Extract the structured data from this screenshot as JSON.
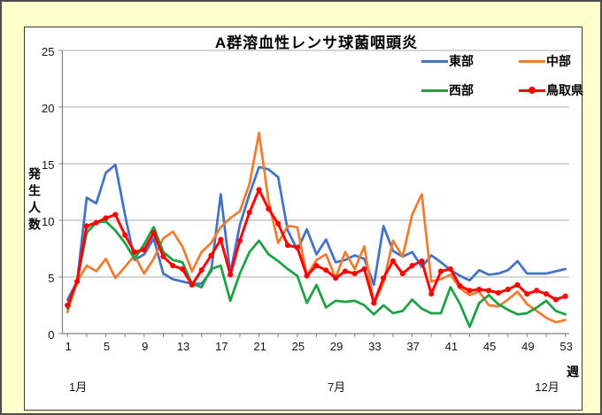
{
  "page": {
    "background": "#FFFFCC"
  },
  "chart": {
    "title": "A群溶血性レンサ球菌咽頭炎",
    "y_axis_title": "発生人数",
    "x_axis_unit": "週",
    "y_ticks": [
      0,
      5,
      10,
      15,
      20,
      25
    ],
    "x_ticks": [
      1,
      5,
      9,
      13,
      17,
      21,
      25,
      29,
      33,
      37,
      41,
      45,
      49,
      53
    ],
    "month_labels": [
      {
        "label": "1月",
        "week": 2
      },
      {
        "label": "7月",
        "week": 29
      },
      {
        "label": "12月",
        "week": 51
      }
    ],
    "grid_color": "#ADADAD",
    "axis_color": "#808080"
  },
  "chart_data": {
    "type": "line",
    "title": "A群溶血性レンサ球菌咽頭炎",
    "xlabel": "週",
    "ylabel": "発生人数",
    "x_range": [
      1,
      53
    ],
    "ylim": [
      0,
      25
    ],
    "grid": true,
    "legend_position": "top-right",
    "x": [
      1,
      2,
      3,
      4,
      5,
      6,
      7,
      8,
      9,
      10,
      11,
      12,
      13,
      14,
      15,
      16,
      17,
      18,
      19,
      20,
      21,
      22,
      23,
      24,
      25,
      26,
      27,
      28,
      29,
      30,
      31,
      32,
      33,
      34,
      35,
      36,
      37,
      38,
      39,
      40,
      41,
      42,
      43,
      44,
      45,
      46,
      47,
      48,
      49,
      50,
      51,
      52,
      53
    ],
    "series": [
      {
        "name": "東部",
        "color": "#4472C4",
        "marker": false,
        "values": [
          3.0,
          4.6,
          12.0,
          11.5,
          14.2,
          14.9,
          10.5,
          6.5,
          7.0,
          8.4,
          5.3,
          4.8,
          4.6,
          4.4,
          4.4,
          5.5,
          12.3,
          5.3,
          9.6,
          12.3,
          14.7,
          14.5,
          13.8,
          9.1,
          7.4,
          9.2,
          7.0,
          8.3,
          6.3,
          6.5,
          6.9,
          6.6,
          4.3,
          9.5,
          7.3,
          6.8,
          7.2,
          5.9,
          6.9,
          6.3,
          5.6,
          5.1,
          4.7,
          5.6,
          5.2,
          5.3,
          5.6,
          6.4,
          5.3,
          5.3,
          5.3,
          5.5,
          5.7
        ]
      },
      {
        "name": "中部",
        "color": "#ED7D31",
        "marker": false,
        "values": [
          1.9,
          4.6,
          6.0,
          5.5,
          6.6,
          4.9,
          5.9,
          6.9,
          5.3,
          6.6,
          8.4,
          9.0,
          7.7,
          5.5,
          7.2,
          8.0,
          9.4,
          10.2,
          10.8,
          13.2,
          17.7,
          11.7,
          8.0,
          9.5,
          9.4,
          5.1,
          6.5,
          7.0,
          4.9,
          7.2,
          5.7,
          7.7,
          2.6,
          4.5,
          8.2,
          6.8,
          10.5,
          12.3,
          4.6,
          4.8,
          5.2,
          4.0,
          3.4,
          3.7,
          2.5,
          2.4,
          3.0,
          3.7,
          2.6,
          2.0,
          1.4,
          1.0,
          1.2
        ]
      },
      {
        "name": "西部",
        "color": "#1FA045",
        "marker": false,
        "values": [
          2.2,
          4.7,
          8.9,
          9.8,
          9.9,
          9.1,
          8.0,
          6.6,
          7.9,
          9.4,
          7.2,
          6.5,
          6.3,
          4.4,
          4.1,
          5.7,
          6.0,
          2.9,
          5.3,
          7.2,
          8.2,
          7.0,
          6.4,
          5.7,
          5.1,
          2.7,
          4.3,
          2.3,
          2.9,
          2.8,
          2.9,
          2.5,
          1.7,
          2.5,
          1.8,
          2.0,
          3.0,
          2.2,
          1.8,
          1.8,
          4.1,
          2.6,
          0.6,
          2.7,
          3.4,
          2.6,
          2.1,
          1.7,
          1.8,
          2.3,
          2.9,
          2.0,
          1.7
        ]
      },
      {
        "name": "鳥取県",
        "color": "#FF0000",
        "marker": true,
        "values": [
          2.5,
          4.6,
          9.5,
          9.8,
          10.2,
          10.5,
          8.7,
          7.2,
          7.4,
          8.9,
          6.8,
          6.0,
          5.7,
          4.3,
          5.6,
          6.9,
          8.3,
          5.2,
          8.2,
          10.7,
          12.7,
          11.0,
          9.7,
          7.8,
          7.6,
          5.1,
          6.0,
          5.6,
          4.9,
          5.5,
          5.3,
          5.7,
          2.7,
          4.9,
          6.4,
          5.3,
          6.0,
          6.4,
          3.5,
          5.5,
          5.7,
          4.2,
          3.8,
          3.9,
          3.8,
          3.6,
          3.9,
          4.3,
          3.5,
          3.8,
          3.5,
          3.0,
          3.3
        ]
      }
    ]
  }
}
